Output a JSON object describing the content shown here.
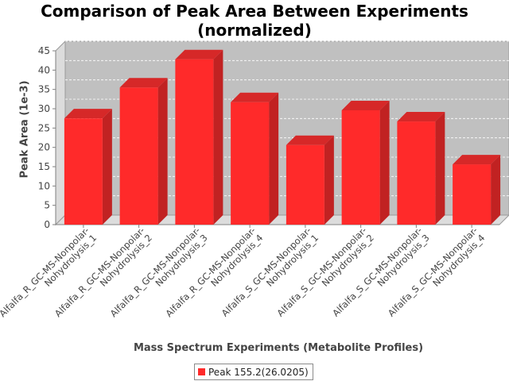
{
  "chart_data": {
    "type": "bar",
    "title": "Comparison of Peak Area Between Experiments\n(normalized)",
    "xlabel": "Mass Spectrum Experiments (Metabolite Profiles)",
    "ylabel": "Peak Area (1e-3)",
    "ylim": [
      0,
      45
    ],
    "yticks": [
      0,
      5,
      10,
      15,
      20,
      25,
      30,
      35,
      40,
      45
    ],
    "grid": true,
    "legend_position": "bottom",
    "categories": [
      "Alfalfa_R_GC-MS-Nonpolar-Nohydrolysis_1",
      "Alfalfa_R_GC-MS-Nonpolar-Nohydrolysis_2",
      "Alfalfa_R_GC-MS-Nonpolar-Nohydrolysis_3",
      "Alfalfa_R_GC-MS-Nonpolar-Nohydrolysis_4",
      "Alfalfa_S_GC-MS-Nonpolar-Nohydrolysis_1",
      "Alfalfa_S_GC-MS-Nonpolar-Nohydrolysis_2",
      "Alfalfa_S_GC-MS-Nonpolar-Nohydrolysis_3",
      "Alfalfa_S_GC-MS-Nonpolar-Nohydrolysis_4"
    ],
    "category_lines": [
      [
        "Alfalfa_R_GC-MS-Nonpolar-",
        "Nohydrolysis_1"
      ],
      [
        "Alfalfa_R_GC-MS-Nonpolar-",
        "Nohydrolysis_2"
      ],
      [
        "Alfalfa_R_GC-MS-Nonpolar-",
        "Nohydrolysis_3"
      ],
      [
        "Alfalfa_R_GC-MS-Nonpolar-",
        "Nohydrolysis_4"
      ],
      [
        "Alfalfa_S_GC-MS-Nonpolar-",
        "Nohydrolysis_1"
      ],
      [
        "Alfalfa_S_GC-MS-Nonpolar-",
        "Nohydrolysis_2"
      ],
      [
        "Alfalfa_S_GC-MS-Nonpolar-",
        "Nohydrolysis_3"
      ],
      [
        "Alfalfa_S_GC-MS-Nonpolar-",
        "Nohydrolysis_4"
      ]
    ],
    "series": [
      {
        "name": "Peak 155.2(26.0205)",
        "values": [
          27.5,
          35.5,
          42.8,
          31.7,
          20.6,
          29.6,
          26.7,
          15.6
        ]
      }
    ],
    "colors": {
      "bar_front": "#ff2a2a",
      "bar_side": "#c12222",
      "bar_top": "#d62828",
      "plot_background": "#c0c0c0",
      "plot_wall": "#dcdcdc",
      "gridline": "#ffffff"
    }
  }
}
